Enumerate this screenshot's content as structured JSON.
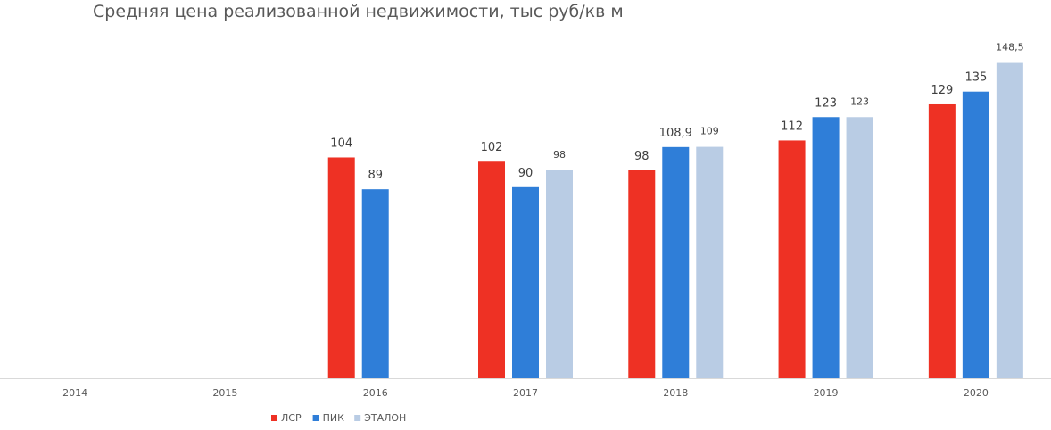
{
  "chart_data": {
    "type": "bar",
    "title": "Средняя цена реализованной недвижимости, тыс руб/кв м",
    "xlabel": "",
    "ylabel": "",
    "ylim": [
      0,
      160
    ],
    "grid": false,
    "legend": "bottom",
    "categories": [
      "2014",
      "2015",
      "2016",
      "2017",
      "2018",
      "2019",
      "2020"
    ],
    "series": [
      {
        "name": "ЛСР",
        "color": "#EE3124",
        "values": [
          null,
          null,
          104,
          102,
          98,
          112,
          129
        ],
        "labels": [
          "",
          "",
          "104",
          "102",
          "98",
          "112",
          "129"
        ]
      },
      {
        "name": "ПИК",
        "color": "#2F7ED8",
        "values": [
          null,
          null,
          89,
          90,
          108.9,
          123,
          135
        ],
        "labels": [
          "",
          "",
          "89",
          "90",
          "108,9",
          "123",
          "135"
        ]
      },
      {
        "name": "ЭТАЛОН",
        "color": "#B9CCE4",
        "values": [
          null,
          null,
          null,
          98,
          109,
          123,
          148.5
        ],
        "labels": [
          "",
          "",
          "",
          "98",
          "109",
          "123",
          "148,5"
        ]
      }
    ]
  }
}
